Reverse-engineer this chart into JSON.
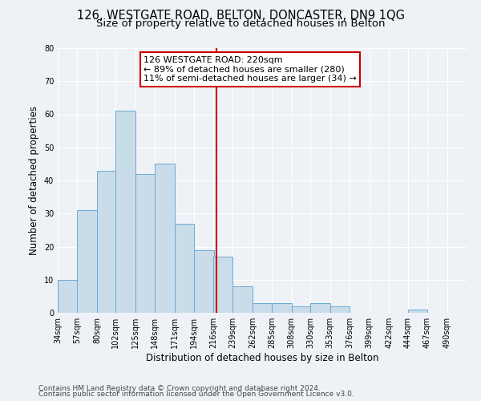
{
  "title": "126, WESTGATE ROAD, BELTON, DONCASTER, DN9 1QG",
  "subtitle": "Size of property relative to detached houses in Belton",
  "xlabel": "Distribution of detached houses by size in Belton",
  "ylabel": "Number of detached properties",
  "footnote1": "Contains HM Land Registry data © Crown copyright and database right 2024.",
  "footnote2": "Contains public sector information licensed under the Open Government Licence v3.0.",
  "bin_labels": [
    "34sqm",
    "57sqm",
    "80sqm",
    "102sqm",
    "125sqm",
    "148sqm",
    "171sqm",
    "194sqm",
    "216sqm",
    "239sqm",
    "262sqm",
    "285sqm",
    "308sqm",
    "330sqm",
    "353sqm",
    "376sqm",
    "399sqm",
    "422sqm",
    "444sqm",
    "467sqm",
    "490sqm"
  ],
  "bin_edges": [
    34,
    57,
    80,
    102,
    125,
    148,
    171,
    194,
    216,
    239,
    262,
    285,
    308,
    330,
    353,
    376,
    399,
    422,
    444,
    467,
    490
  ],
  "counts": [
    10,
    31,
    43,
    61,
    42,
    45,
    27,
    19,
    17,
    8,
    3,
    3,
    2,
    3,
    2,
    0,
    0,
    0,
    1,
    0,
    0
  ],
  "property_size": 220,
  "bar_color": "#c9dcea",
  "bar_edge_color": "#6aaad4",
  "vline_color": "#cc0000",
  "annotation_line1": "126 WESTGATE ROAD: 220sqm",
  "annotation_line2": "← 89% of detached houses are smaller (280)",
  "annotation_line3": "11% of semi-detached houses are larger (34) →",
  "annotation_box_edge": "#cc0000",
  "ylim": [
    0,
    80
  ],
  "yticks": [
    0,
    10,
    20,
    30,
    40,
    50,
    60,
    70,
    80
  ],
  "background_color": "#eef2f7",
  "grid_color": "#ffffff",
  "title_fontsize": 10.5,
  "subtitle_fontsize": 9.5,
  "axis_label_fontsize": 8.5,
  "tick_fontsize": 7,
  "annotation_fontsize": 8,
  "footnote_fontsize": 6.5
}
